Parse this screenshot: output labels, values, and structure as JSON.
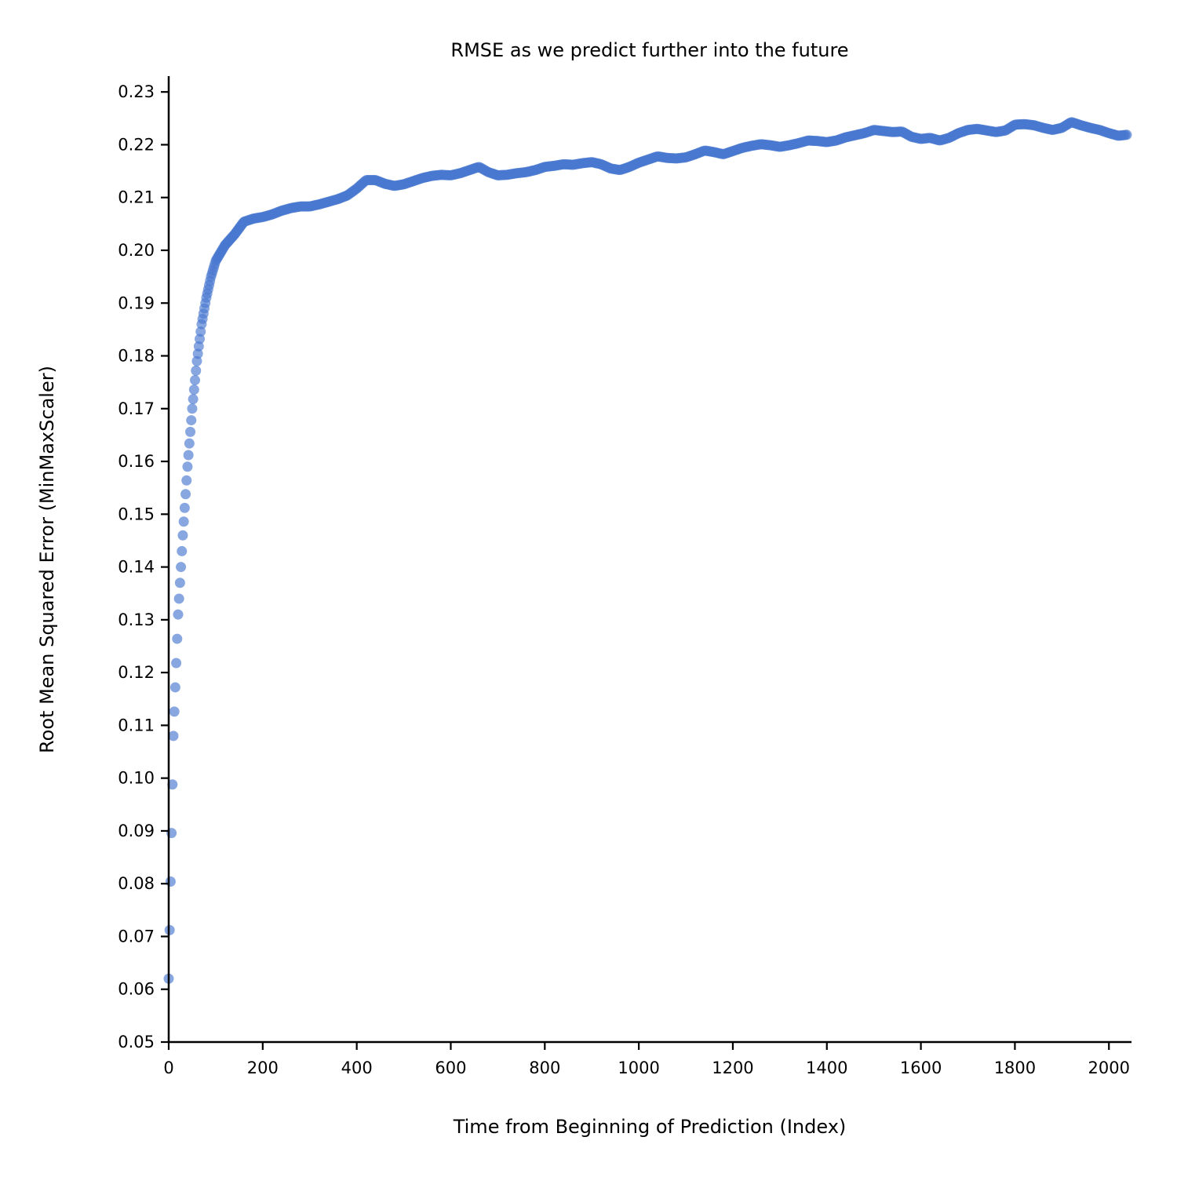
{
  "chart_data": {
    "type": "scatter",
    "title": "RMSE as we predict further into the future",
    "xlabel": "Time from Beginning of Prediction (Index)",
    "ylabel": "Root Mean Squared Error (MinMaxScaler)",
    "xlim": [
      0,
      2048
    ],
    "ylim": [
      0.05,
      0.233
    ],
    "xticks": [
      "0",
      "200",
      "400",
      "600",
      "800",
      "1000",
      "1200",
      "1400",
      "1600",
      "1800",
      "2000"
    ],
    "yticks": [
      "0.05",
      "0.06",
      "0.07",
      "0.08",
      "0.09",
      "0.10",
      "0.11",
      "0.12",
      "0.13",
      "0.14",
      "0.15",
      "0.16",
      "0.17",
      "0.18",
      "0.19",
      "0.20",
      "0.21",
      "0.22",
      "0.23"
    ],
    "grid": false,
    "colors": {
      "marker": "#4878d0"
    },
    "series": [
      {
        "x": [
          0,
          10,
          20,
          30,
          40,
          50,
          60,
          70,
          80,
          90,
          100,
          120,
          140,
          160,
          180,
          200,
          220,
          240,
          260,
          280,
          300,
          320,
          340,
          360,
          380,
          400,
          420,
          440,
          460,
          480,
          500,
          520,
          540,
          560,
          580,
          600,
          620,
          640,
          660,
          680,
          700,
          720,
          740,
          760,
          780,
          800,
          820,
          840,
          860,
          880,
          900,
          920,
          940,
          960,
          980,
          1000,
          1020,
          1040,
          1060,
          1080,
          1100,
          1120,
          1140,
          1160,
          1180,
          1200,
          1220,
          1240,
          1260,
          1280,
          1300,
          1320,
          1340,
          1360,
          1380,
          1400,
          1420,
          1440,
          1460,
          1480,
          1500,
          1520,
          1540,
          1560,
          1580,
          1600,
          1620,
          1640,
          1660,
          1680,
          1700,
          1720,
          1740,
          1760,
          1780,
          1800,
          1820,
          1840,
          1860,
          1880,
          1900,
          1920,
          1940,
          1960,
          1980,
          2000,
          2020,
          2040
        ],
        "y": [
          0.062,
          0.108,
          0.131,
          0.146,
          0.159,
          0.17,
          0.179,
          0.186,
          0.191,
          0.195,
          0.198,
          0.201,
          0.203,
          0.2054,
          0.206,
          0.2063,
          0.2068,
          0.2075,
          0.208,
          0.2083,
          0.2083,
          0.2087,
          0.2092,
          0.2097,
          0.2104,
          0.2117,
          0.2133,
          0.2133,
          0.2126,
          0.2122,
          0.2125,
          0.2131,
          0.2137,
          0.2141,
          0.2143,
          0.2142,
          0.2146,
          0.2152,
          0.2158,
          0.2148,
          0.2142,
          0.2143,
          0.2146,
          0.2148,
          0.2152,
          0.2158,
          0.216,
          0.2163,
          0.2162,
          0.2165,
          0.2167,
          0.2163,
          0.2155,
          0.2152,
          0.2158,
          0.2166,
          0.2172,
          0.2178,
          0.2175,
          0.2174,
          0.2176,
          0.2182,
          0.2189,
          0.2186,
          0.2182,
          0.2188,
          0.2194,
          0.2198,
          0.2201,
          0.2199,
          0.2196,
          0.2199,
          0.2203,
          0.2208,
          0.2207,
          0.2205,
          0.2208,
          0.2214,
          0.2218,
          0.2222,
          0.2228,
          0.2226,
          0.2224,
          0.2225,
          0.2215,
          0.2211,
          0.2213,
          0.2208,
          0.2213,
          0.2222,
          0.2228,
          0.223,
          0.2227,
          0.2224,
          0.2227,
          0.2238,
          0.2239,
          0.2237,
          0.2232,
          0.2228,
          0.2232,
          0.2243,
          0.2237,
          0.2232,
          0.2228,
          0.2222,
          0.2217,
          0.2219
        ]
      }
    ]
  }
}
